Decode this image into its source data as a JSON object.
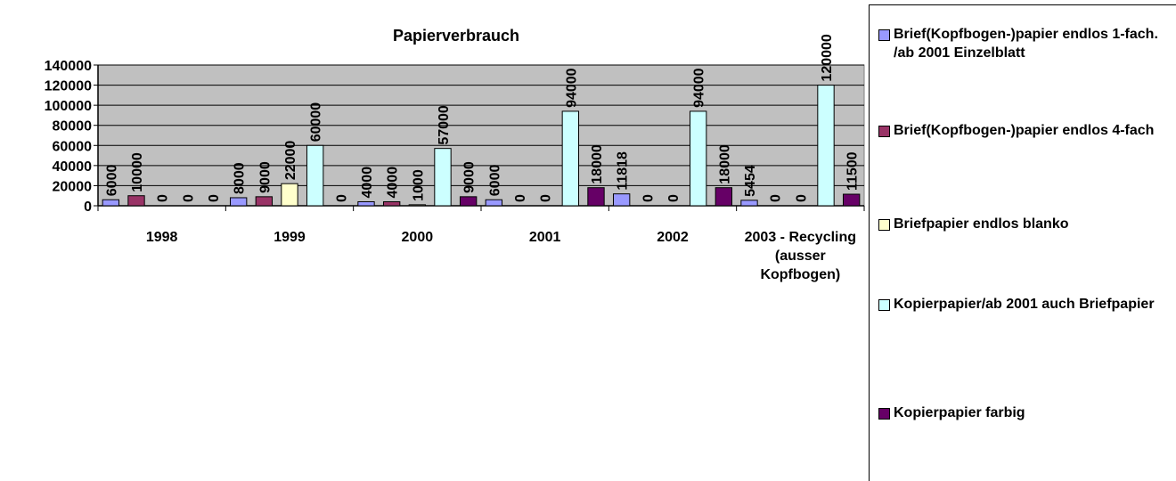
{
  "chart_data": {
    "type": "bar",
    "title": "Papierverbrauch",
    "categories": [
      "1998",
      "1999",
      "2000",
      "2001",
      "2002",
      "2003 - Recycling (ausser Kopfbogen)"
    ],
    "series": [
      {
        "name": "Brief(Kopfbogen-)papier endlos 1-fach. /ab 2001 Einzelblatt",
        "color": "#9999ff",
        "values": [
          6000,
          8000,
          4000,
          6000,
          11818,
          5454
        ]
      },
      {
        "name": "Brief(Kopfbogen-)papier endlos 4-fach",
        "color": "#993366",
        "values": [
          10000,
          9000,
          4000,
          0,
          0,
          0
        ]
      },
      {
        "name": "Briefpapier endlos blanko",
        "color": "#ffffcc",
        "values": [
          0,
          22000,
          1000,
          0,
          0,
          0
        ]
      },
      {
        "name": "Kopierpapier/ab 2001 auch Briefpapier",
        "color": "#ccffff",
        "values": [
          0,
          60000,
          57000,
          94000,
          94000,
          120000
        ]
      },
      {
        "name": "Kopierpapier farbig",
        "color": "#660066",
        "values": [
          0,
          0,
          9000,
          18000,
          18000,
          11500
        ]
      }
    ],
    "ylim": [
      0,
      140000
    ],
    "yticks": [
      0,
      20000,
      40000,
      60000,
      80000,
      100000,
      120000,
      140000
    ],
    "grid": true,
    "plot_background": "#c0c0c0",
    "legend": "right"
  }
}
